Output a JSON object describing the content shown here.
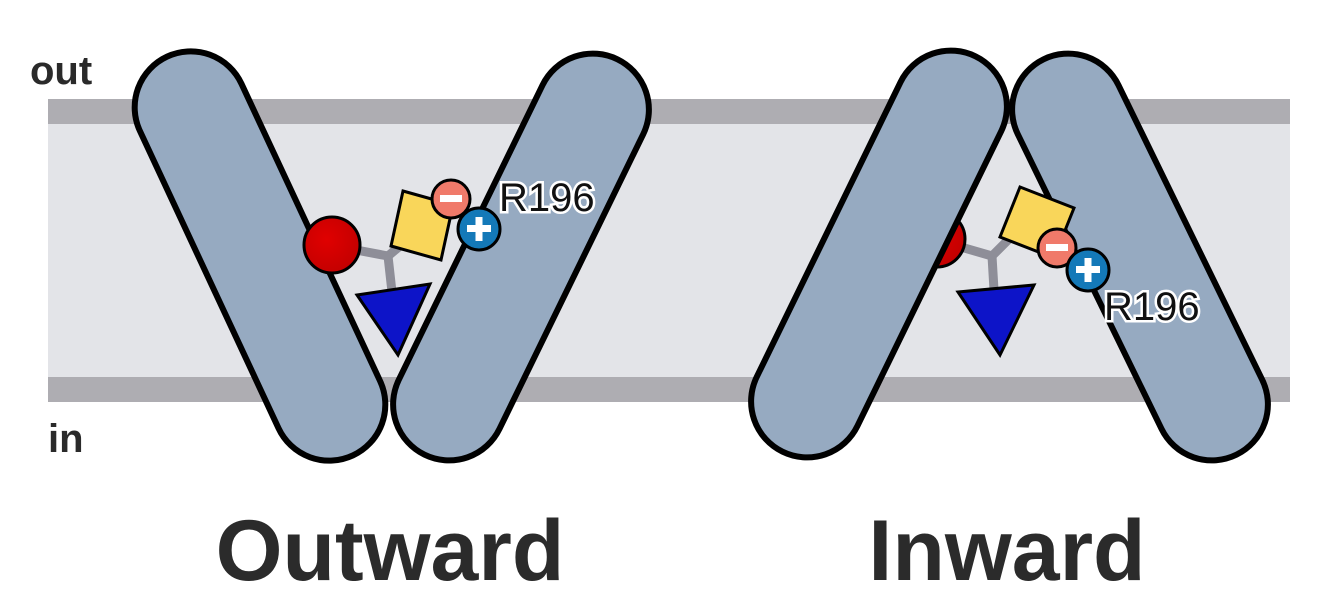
{
  "membrane": {
    "out_label": "out",
    "in_label": "in"
  },
  "states": [
    {
      "label": "Outward",
      "residue": "R196"
    },
    {
      "label": "Inward",
      "residue": "R196"
    }
  ],
  "colors": {
    "helix_fill": "#96aac1",
    "membrane_boundary": "#aeadb2",
    "membrane_core": "#e3e4e8",
    "substrate_sphere": "#cc0000",
    "substrate_square": "#f9d65a",
    "substrate_triangle": "#0d14c8",
    "negative_charge": "#f07a6a",
    "positive_charge": "#1479b8"
  },
  "icons": [
    "negative-charge-icon",
    "positive-charge-icon"
  ]
}
